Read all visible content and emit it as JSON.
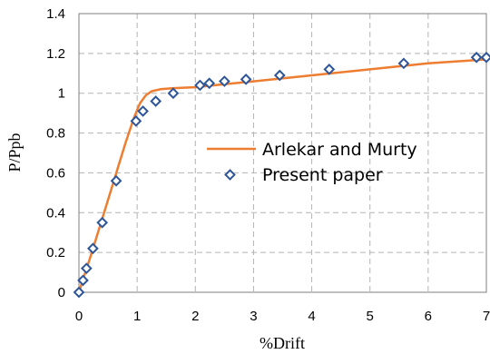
{
  "chart_data": {
    "type": "scatter",
    "title": "",
    "xlabel": "%Drift",
    "ylabel": "P/Ppb",
    "xlim": [
      0,
      7
    ],
    "ylim": [
      0,
      1.4
    ],
    "x_ticks": [
      "0",
      "1",
      "2",
      "3",
      "4",
      "5",
      "6",
      "7"
    ],
    "y_ticks": [
      "0",
      "0.2",
      "0.4",
      "0.6",
      "0.8",
      "1",
      "1.2",
      "1.4"
    ],
    "grid": true,
    "legend_position": "right-center",
    "series": [
      {
        "name": "Arlekar and Murty",
        "kind": "line",
        "color": "#ed7d31",
        "x": [
          0,
          0.2,
          0.4,
          0.6,
          0.8,
          0.95,
          1.05,
          1.15,
          1.25,
          1.4,
          1.6,
          1.8,
          2.0,
          2.5,
          3.0,
          4.0,
          5.0,
          6.0,
          7.0
        ],
        "y": [
          0,
          0.18,
          0.37,
          0.56,
          0.75,
          0.88,
          0.95,
          0.99,
          1.01,
          1.02,
          1.025,
          1.028,
          1.03,
          1.045,
          1.06,
          1.09,
          1.12,
          1.15,
          1.17
        ]
      },
      {
        "name": "Present paper",
        "kind": "scatter",
        "color": "#2e5597",
        "x": [
          0,
          0.07,
          0.13,
          0.24,
          0.4,
          0.64,
          0.98,
          1.1,
          1.32,
          1.62,
          2.08,
          2.24,
          2.5,
          2.87,
          3.45,
          4.3,
          5.58,
          6.83,
          7.0
        ],
        "y": [
          0,
          0.06,
          0.12,
          0.22,
          0.35,
          0.56,
          0.86,
          0.91,
          0.96,
          1.0,
          1.04,
          1.05,
          1.06,
          1.07,
          1.09,
          1.12,
          1.15,
          1.18,
          1.18
        ]
      }
    ]
  }
}
